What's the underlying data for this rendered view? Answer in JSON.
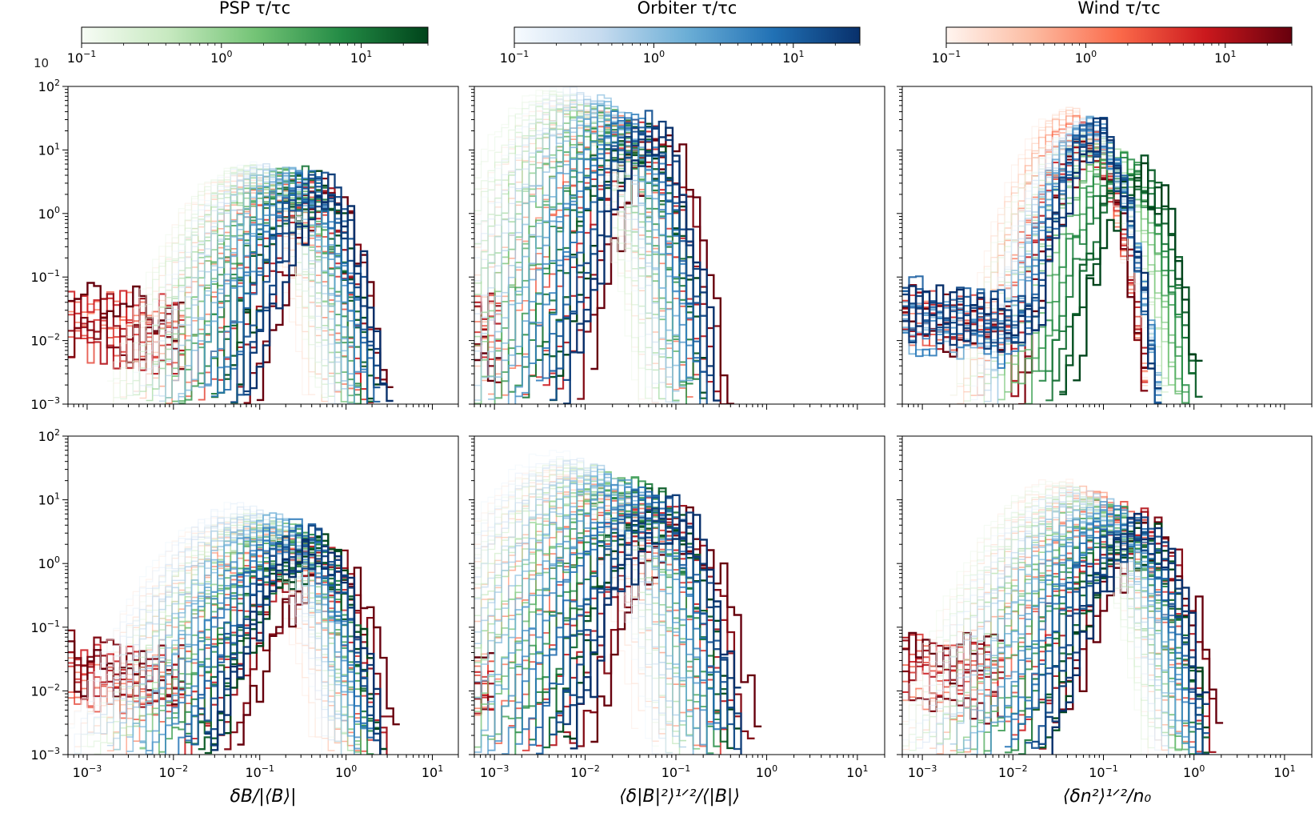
{
  "colorbars": [
    {
      "title": "PSP τ/τc",
      "color_name": "Greens",
      "stops": [
        "#f7fcf5",
        "#c7e9c0",
        "#74c476",
        "#238b45",
        "#00441b"
      ],
      "ticks": [
        {
          "v": 0.1,
          "base": "10",
          "exp": "−1"
        },
        {
          "v": 1,
          "base": "10",
          "exp": "0"
        },
        {
          "v": 10,
          "base": "10",
          "exp": "1"
        }
      ],
      "range": [
        0.1,
        30
      ]
    },
    {
      "title": "Orbiter τ/τc",
      "color_name": "Blues",
      "stops": [
        "#f7fbff",
        "#c6dbef",
        "#6baed6",
        "#2171b5",
        "#08306b"
      ],
      "ticks": [
        {
          "v": 0.1,
          "base": "10",
          "exp": "−1"
        },
        {
          "v": 1,
          "base": "10",
          "exp": "0"
        },
        {
          "v": 10,
          "base": "10",
          "exp": "1"
        }
      ],
      "range": [
        0.1,
        30
      ]
    },
    {
      "title": "Wind τ/τc",
      "color_name": "Reds",
      "stops": [
        "#fff5f0",
        "#fcbba1",
        "#fb6a4a",
        "#cb181d",
        "#67000d"
      ],
      "ticks": [
        {
          "v": 0.1,
          "base": "10",
          "exp": "−1"
        },
        {
          "v": 1,
          "base": "10",
          "exp": "0"
        },
        {
          "v": 10,
          "base": "10",
          "exp": "1"
        }
      ],
      "range": [
        0.1,
        30
      ]
    }
  ],
  "axes": {
    "xscale": "log",
    "yscale": "log",
    "xlim": [
      0.0006,
      20
    ],
    "ylim": [
      0.001,
      100
    ],
    "xticks": [
      {
        "v": 0.001,
        "base": "10",
        "exp": "−3"
      },
      {
        "v": 0.01,
        "base": "10",
        "exp": "−2"
      },
      {
        "v": 0.1,
        "base": "10",
        "exp": "−1"
      },
      {
        "v": 1,
        "base": "10",
        "exp": "0"
      },
      {
        "v": 10,
        "base": "10",
        "exp": "1"
      }
    ],
    "yticks": [
      {
        "v": 0.001,
        "base": "10",
        "exp": "−3"
      },
      {
        "v": 0.01,
        "base": "10",
        "exp": "−2"
      },
      {
        "v": 0.1,
        "base": "10",
        "exp": "−1"
      },
      {
        "v": 1,
        "base": "10",
        "exp": "0"
      },
      {
        "v": 10,
        "base": "10",
        "exp": "1"
      },
      {
        "v": 100,
        "base": "10",
        "exp": "2"
      }
    ],
    "xlabels": [
      "δB/|⟨B⟩|",
      "⟨δ|B|²⟩¹ᐟ²/⟨|B|⟩",
      "⟨δn²⟩¹ᐟ²/n₀"
    ],
    "grid": false,
    "edge_fragment": "10"
  },
  "chart_data": [
    {
      "type": "line",
      "panel": "top-1",
      "series": [
        {
          "set": "PSP",
          "peaks_x": [
            0.06,
            0.45
          ],
          "peaks_y": [
            5,
            2.2
          ],
          "width": 0.55
        },
        {
          "set": "Orbiter",
          "peaks_x": [
            0.08,
            0.65
          ],
          "peaks_y": [
            5.5,
            1.8
          ],
          "width": 0.5
        },
        {
          "set": "Wind",
          "peaks_x": [
            0.05,
            0.7
          ],
          "peaks_y": [
            4,
            1.6
          ],
          "width": 0.5
        }
      ]
    },
    {
      "type": "line",
      "panel": "top-2",
      "series": [
        {
          "set": "PSP",
          "peaks_x": [
            0.004,
            0.045
          ],
          "peaks_y": [
            80,
            12
          ],
          "width": 0.5
        },
        {
          "set": "Orbiter",
          "peaks_x": [
            0.006,
            0.06
          ],
          "peaks_y": [
            90,
            15
          ],
          "width": 0.45
        },
        {
          "set": "Wind",
          "peaks_x": [
            0.005,
            0.08
          ],
          "peaks_y": [
            60,
            10
          ],
          "width": 0.45
        }
      ]
    },
    {
      "type": "line",
      "panel": "top-3",
      "series": [
        {
          "set": "PSP",
          "peaks_x": [
            0.05,
            0.28
          ],
          "peaks_y": [
            20,
            3.5
          ],
          "width": 0.45
        },
        {
          "set": "Orbiter",
          "peaks_x": [
            0.06,
            0.09
          ],
          "peaks_y": [
            25,
            14
          ],
          "width": 0.4
        },
        {
          "set": "Wind",
          "peaks_x": [
            0.04,
            0.075
          ],
          "peaks_y": [
            45,
            8
          ],
          "width": 0.4
        }
      ]
    },
    {
      "type": "line",
      "panel": "bottom-1",
      "series": [
        {
          "set": "PSP",
          "peaks_x": [
            0.08,
            0.5
          ],
          "peaks_y": [
            6,
            1.2
          ],
          "width": 0.7
        },
        {
          "set": "Orbiter",
          "peaks_x": [
            0.06,
            0.5
          ],
          "peaks_y": [
            8,
            1.5
          ],
          "width": 0.7
        },
        {
          "set": "Wind",
          "peaks_x": [
            0.05,
            0.8
          ],
          "peaks_y": [
            5,
            0.8
          ],
          "width": 0.7
        }
      ]
    },
    {
      "type": "line",
      "panel": "bottom-2",
      "series": [
        {
          "set": "PSP",
          "peaks_x": [
            0.006,
            0.08
          ],
          "peaks_y": [
            40,
            6
          ],
          "width": 0.6
        },
        {
          "set": "Orbiter",
          "peaks_x": [
            0.005,
            0.1
          ],
          "peaks_y": [
            55,
            5
          ],
          "width": 0.6
        },
        {
          "set": "Wind",
          "peaks_x": [
            0.004,
            0.15
          ],
          "peaks_y": [
            30,
            3
          ],
          "width": 0.6
        }
      ]
    },
    {
      "type": "line",
      "panel": "bottom-3",
      "series": [
        {
          "set": "PSP",
          "peaks_x": [
            0.03,
            0.3
          ],
          "peaks_y": [
            18,
            2
          ],
          "width": 0.6
        },
        {
          "set": "Orbiter",
          "peaks_x": [
            0.04,
            0.3
          ],
          "peaks_y": [
            15,
            2.5
          ],
          "width": 0.6
        },
        {
          "set": "Wind",
          "peaks_x": [
            0.035,
            0.4
          ],
          "peaks_y": [
            20,
            2.2
          ],
          "width": 0.6
        }
      ]
    }
  ]
}
